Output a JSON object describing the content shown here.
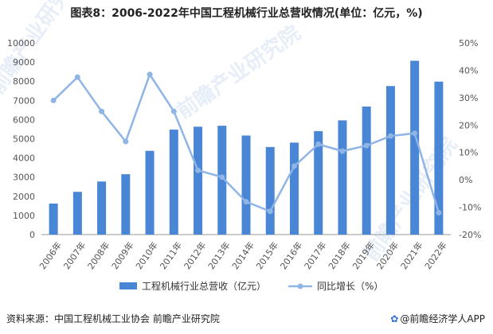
{
  "title": "图表8：2006-2022年中国工程机械行业总营收情况(单位：亿元，%)",
  "source": "资料来源：中国工程机械工业协会 前瞻产业研究院",
  "credit": "@前瞻经济学人APP",
  "watermark": "前瞻产业研究院",
  "colors": {
    "bar": "#4a86d6",
    "line": "#8fb4e6",
    "axis": "#999999"
  },
  "chart_data": {
    "type": "bar",
    "categories": [
      "2006年",
      "2007年",
      "2008年",
      "2009年",
      "2010年",
      "2011年",
      "2012年",
      "2013年",
      "2014年",
      "2015年",
      "2016年",
      "2017年",
      "2018年",
      "2019年",
      "2020年",
      "2021年",
      "2022年"
    ],
    "series": [
      {
        "name": "工程机械行业总营收（亿元）",
        "type": "bar",
        "axis": "left",
        "values": [
          1620,
          2230,
          2770,
          3150,
          4370,
          5480,
          5630,
          5680,
          5170,
          4570,
          4800,
          5400,
          5960,
          6680,
          7750,
          9070,
          7980
        ]
      },
      {
        "name": "同比增长（%）",
        "type": "line",
        "axis": "right",
        "values": [
          29,
          37.5,
          25,
          14,
          38.5,
          25,
          3.5,
          1,
          -8,
          -11.5,
          5,
          13,
          10.5,
          12.5,
          16,
          17,
          -12
        ]
      }
    ],
    "ylim_left": [
      0,
      10000
    ],
    "yticks_left": [
      "0",
      "1000",
      "2000",
      "3000",
      "4000",
      "5000",
      "6000",
      "7000",
      "8000",
      "9000",
      "10000"
    ],
    "ylim_right": [
      -20,
      50
    ],
    "yticks_right": [
      "-20%",
      "-10%",
      "0%",
      "10%",
      "20%",
      "30%",
      "40%",
      "50%"
    ],
    "grid": false,
    "legend": "bottom"
  }
}
